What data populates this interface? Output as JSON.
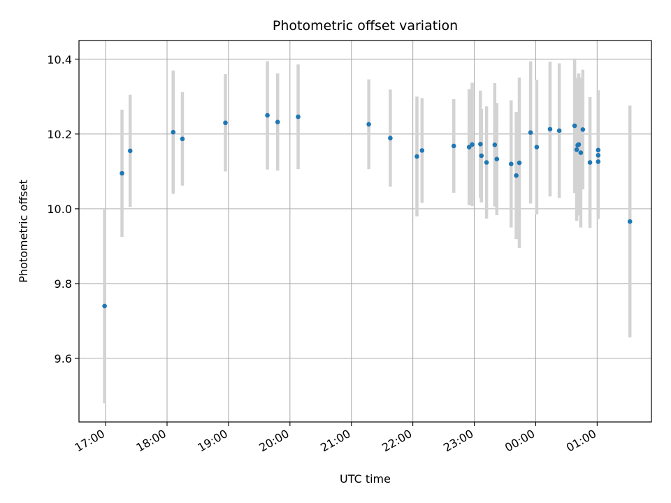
{
  "chart_data": {
    "type": "scatter",
    "title": "Photometric offset variation",
    "xlabel": "UTC time",
    "ylabel": "Photometric offset",
    "x_axis_type": "time",
    "x_ticks": [
      "17:00",
      "18:00",
      "19:00",
      "20:00",
      "21:00",
      "22:00",
      "23:00",
      "00:00",
      "01:00"
    ],
    "xlim": [
      "16:34",
      "01:53"
    ],
    "ylim": [
      9.43,
      10.45
    ],
    "y_ticks": [
      9.6,
      9.8,
      10.0,
      10.2,
      10.4
    ],
    "grid": true,
    "legend": "none",
    "colors": {
      "point": "#1f77b4",
      "errorbar": "#d3d3d3",
      "grid": "#b0b0b0"
    },
    "points": [
      {
        "t": "16:59",
        "y": 9.74,
        "err": 0.26
      },
      {
        "t": "17:16",
        "y": 10.095,
        "err": 0.17
      },
      {
        "t": "17:24",
        "y": 10.155,
        "err": 0.15
      },
      {
        "t": "18:06",
        "y": 10.205,
        "err": 0.165
      },
      {
        "t": "18:15",
        "y": 10.187,
        "err": 0.125
      },
      {
        "t": "18:57",
        "y": 10.23,
        "err": 0.13
      },
      {
        "t": "19:38",
        "y": 10.25,
        "err": 0.145
      },
      {
        "t": "19:48",
        "y": 10.232,
        "err": 0.13
      },
      {
        "t": "20:08",
        "y": 10.246,
        "err": 0.14
      },
      {
        "t": "21:17",
        "y": 10.226,
        "err": 0.12
      },
      {
        "t": "21:38",
        "y": 10.189,
        "err": 0.13
      },
      {
        "t": "22:04",
        "y": 10.14,
        "err": 0.16
      },
      {
        "t": "22:09",
        "y": 10.156,
        "err": 0.14
      },
      {
        "t": "22:40",
        "y": 10.168,
        "err": 0.125
      },
      {
        "t": "22:55",
        "y": 10.165,
        "err": 0.155
      },
      {
        "t": "22:58",
        "y": 10.172,
        "err": 0.165
      },
      {
        "t": "23:06",
        "y": 10.173,
        "err": 0.143
      },
      {
        "t": "23:07",
        "y": 10.142,
        "err": 0.125
      },
      {
        "t": "23:12",
        "y": 10.124,
        "err": 0.15
      },
      {
        "t": "23:20",
        "y": 10.171,
        "err": 0.165
      },
      {
        "t": "23:22",
        "y": 10.133,
        "err": 0.15
      },
      {
        "t": "23:36",
        "y": 10.12,
        "err": 0.17
      },
      {
        "t": "23:41",
        "y": 10.089,
        "err": 0.17
      },
      {
        "t": "23:44",
        "y": 10.123,
        "err": 0.228
      },
      {
        "t": "23:55",
        "y": 10.204,
        "err": 0.19
      },
      {
        "t": "00:01",
        "y": 10.165,
        "err": 0.18
      },
      {
        "t": "00:14",
        "y": 10.213,
        "err": 0.18
      },
      {
        "t": "00:23",
        "y": 10.209,
        "err": 0.18
      },
      {
        "t": "00:38",
        "y": 10.222,
        "err": 0.18
      },
      {
        "t": "00:40",
        "y": 10.158,
        "err": 0.19
      },
      {
        "t": "00:41",
        "y": 10.17,
        "err": 0.18
      },
      {
        "t": "00:42",
        "y": 10.172,
        "err": 0.19
      },
      {
        "t": "00:44",
        "y": 10.15,
        "err": 0.2
      },
      {
        "t": "00:46",
        "y": 10.212,
        "err": 0.16
      },
      {
        "t": "00:53",
        "y": 10.124,
        "err": 0.175
      },
      {
        "t": "01:01",
        "y": 10.143,
        "err": 0.17
      },
      {
        "t": "01:01",
        "y": 10.157,
        "err": 0.16
      },
      {
        "t": "01:01",
        "y": 10.126,
        "err": 0.152
      },
      {
        "t": "01:32",
        "y": 9.966,
        "err": 0.31
      }
    ]
  }
}
